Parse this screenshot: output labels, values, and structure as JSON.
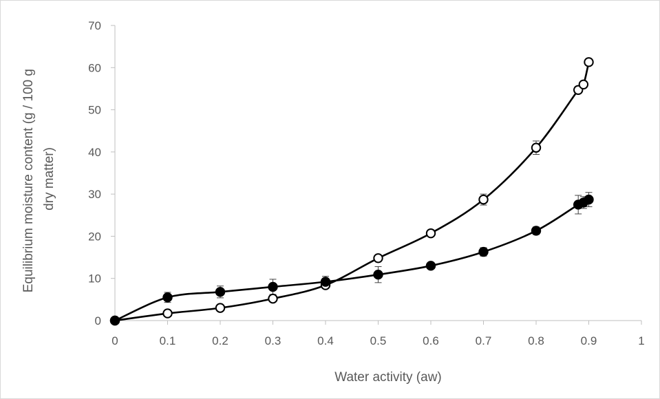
{
  "chart_data": {
    "type": "scatter",
    "title": "",
    "xlabel": "Water activity (aw)",
    "ylabel_lines": [
      "Equilibrium moisture content (g / 100 g",
      "dry matter)"
    ],
    "xlim": [
      0,
      1
    ],
    "ylim": [
      0,
      70
    ],
    "xticks": [
      0,
      0.1,
      0.2,
      0.3,
      0.4,
      0.5,
      0.6,
      0.7,
      0.8,
      0.9,
      1
    ],
    "xtick_labels": [
      "0",
      "0.1",
      "0.2",
      "0.3",
      "0.4",
      "0.5",
      "0.6",
      "0.7",
      "0.8",
      "0.9",
      "1"
    ],
    "yticks": [
      0,
      10,
      20,
      30,
      40,
      50,
      60,
      70
    ],
    "ytick_labels": [
      "0",
      "10",
      "20",
      "30",
      "40",
      "50",
      "60",
      "70"
    ],
    "grid": false,
    "legend": "none",
    "series": [
      {
        "marker": "open-circle",
        "color": "#000000",
        "x": [
          0,
          0.1,
          0.2,
          0.3,
          0.4,
          0.5,
          0.6,
          0.7,
          0.8,
          0.88,
          0.89,
          0.9
        ],
        "y": [
          0,
          1.7,
          3.0,
          5.2,
          8.4,
          14.8,
          20.7,
          28.7,
          41.0,
          54.7,
          56.0,
          61.3
        ],
        "error": [
          0,
          0.3,
          0.4,
          0.5,
          0.8,
          0.6,
          0.7,
          1.3,
          1.6,
          0.8,
          0.8,
          0.8
        ]
      },
      {
        "marker": "filled-circle",
        "color": "#000000",
        "x": [
          0,
          0.1,
          0.2,
          0.3,
          0.4,
          0.5,
          0.6,
          0.7,
          0.8,
          0.88,
          0.89,
          0.9
        ],
        "y": [
          0,
          5.5,
          6.8,
          8.0,
          9.2,
          10.9,
          13.0,
          16.3,
          21.3,
          27.5,
          28.0,
          28.7
        ],
        "error": [
          0,
          1.2,
          1.4,
          1.8,
          1.3,
          1.9,
          0.6,
          1.0,
          0.9,
          2.2,
          1.4,
          1.7
        ]
      }
    ]
  }
}
